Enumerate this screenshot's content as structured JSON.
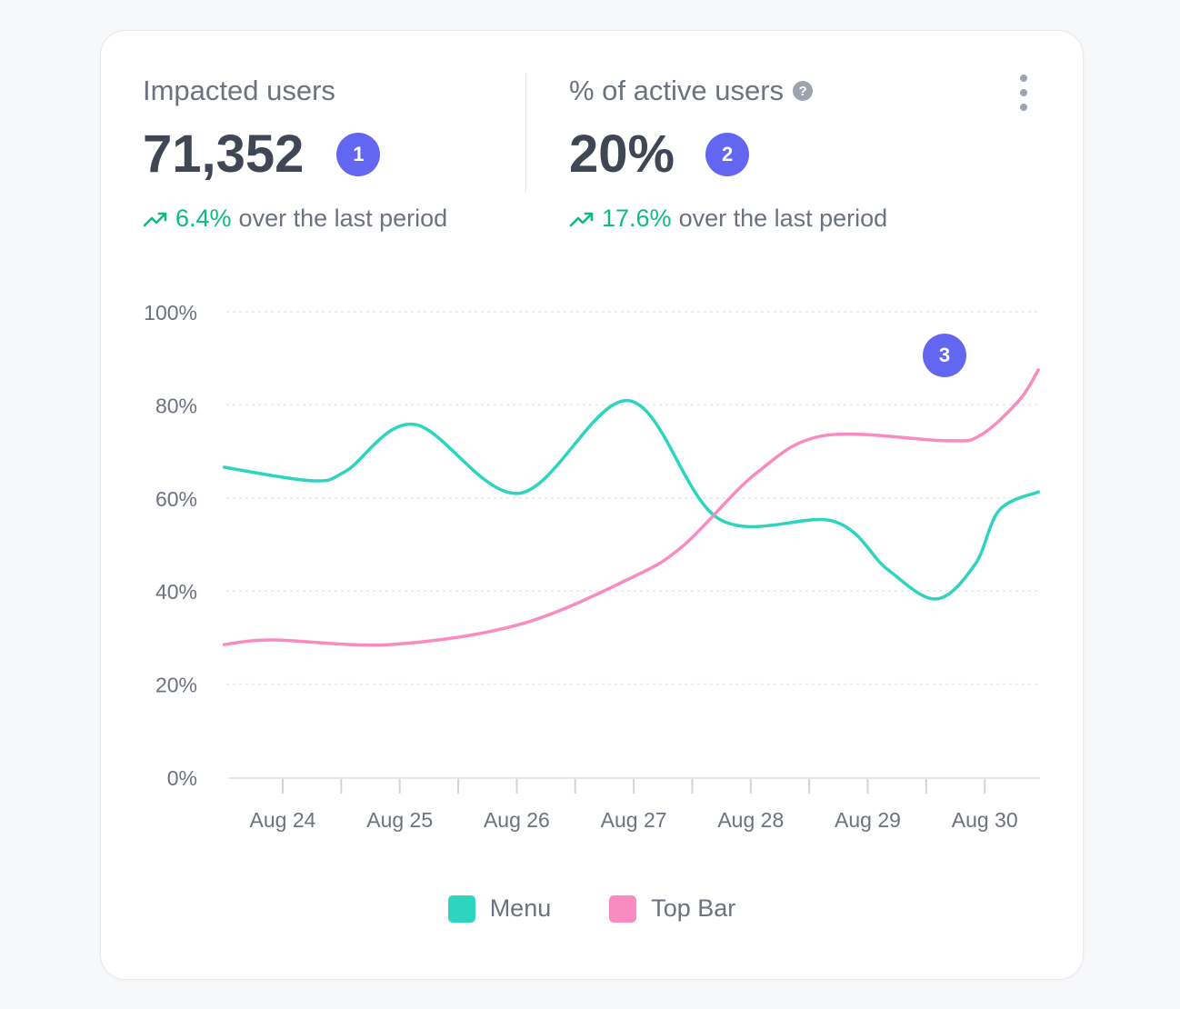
{
  "metrics": [
    {
      "label": "Impacted users",
      "value": "71,352",
      "badge": "1",
      "change": "6.4%",
      "change_suffix": "over the last period",
      "trend_icon": "trending-up-icon"
    },
    {
      "label": "% of active users",
      "value": "20%",
      "badge": "2",
      "change": "17.6%",
      "change_suffix": "over the last period",
      "trend_icon": "trending-up-icon",
      "help_icon": "?"
    }
  ],
  "annotation_badge": "3",
  "colors": {
    "accent": "#6366f1",
    "positive": "#10b981",
    "menu": "#2dd4bf",
    "top_bar": "#f98bc0"
  },
  "chart_data": {
    "type": "line",
    "xlabel": "",
    "ylabel": "",
    "ylim": [
      0,
      100
    ],
    "y_ticks": [
      "0%",
      "20%",
      "40%",
      "60%",
      "80%",
      "100%"
    ],
    "y_tick_values": [
      0,
      20,
      40,
      60,
      80,
      100
    ],
    "x_ticks": [
      "Aug 24",
      "Aug 25",
      "Aug 26",
      "Aug 27",
      "Aug 28",
      "Aug 29",
      "Aug 30"
    ],
    "grid": true,
    "legend_placement": "bottom",
    "series": [
      {
        "name": "Menu",
        "color": "#2dd4bf",
        "points": [
          [
            "Aug 23 12:00",
            66.6
          ],
          [
            "Aug 24 06:00",
            63.7
          ],
          [
            "Aug 24 13:00",
            65.8
          ],
          [
            "Aug 25 03:00",
            75.8
          ],
          [
            "Aug 26 00:30",
            61
          ],
          [
            "Aug 26 23:00",
            80.9
          ],
          [
            "Aug 27 17:30",
            55.5
          ],
          [
            "Aug 28 17:00",
            55
          ],
          [
            "Aug 29 04:00",
            44.7
          ],
          [
            "Aug 29 14:00",
            38.3
          ],
          [
            "Aug 29 22:00",
            45.7
          ],
          [
            "Aug 30 03:00",
            57.4
          ],
          [
            "Aug 30 11:00",
            61.3
          ]
        ]
      },
      {
        "name": "Top Bar",
        "color": "#f98bc0",
        "points": [
          [
            "Aug 23 12:00",
            28.5
          ],
          [
            "Aug 23 22:00",
            29.5
          ],
          [
            "Aug 24 22:00",
            28.5
          ],
          [
            "Aug 26 00:30",
            32.8
          ],
          [
            "Aug 26 23:00",
            42.6
          ],
          [
            "Aug 27 10:00",
            49.6
          ],
          [
            "Aug 28 01:00",
            65.2
          ],
          [
            "Aug 28 15:00",
            73.4
          ],
          [
            "Aug 29 16:00",
            72.3
          ],
          [
            "Aug 29 23:00",
            73.4
          ],
          [
            "Aug 30 07:00",
            80.9
          ],
          [
            "Aug 30 11:00",
            87.5
          ]
        ]
      }
    ]
  }
}
